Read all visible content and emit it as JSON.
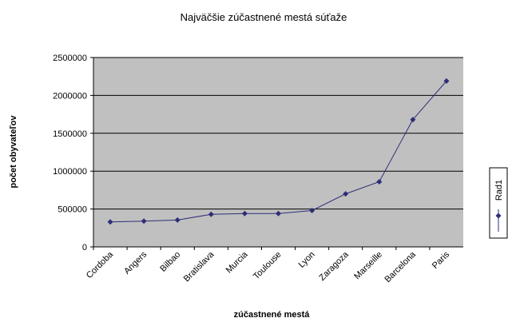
{
  "chart_data": {
    "type": "line",
    "title": "Najväčšie zúčastnené mestá súťaže",
    "x_label": "zúčastnené mestá",
    "y_label": "počet obyvateľov",
    "categories": [
      "Cordoba",
      "Angers",
      "Bilbao",
      "Bratislava",
      "Murcia",
      "Toulouse",
      "Lyon",
      "Zaragoza",
      "Marseille",
      "Barcelona",
      "Paris"
    ],
    "series": [
      {
        "name": "Rad1",
        "color": "#2e2e78",
        "values": [
          330000,
          340000,
          355000,
          430000,
          440000,
          440000,
          480000,
          700000,
          860000,
          1680000,
          2190000
        ]
      }
    ],
    "ylim": [
      0,
      2500000
    ],
    "yticks": [
      0,
      500000,
      1000000,
      1500000,
      2000000,
      2500000
    ],
    "grid": true,
    "legend": "right"
  }
}
